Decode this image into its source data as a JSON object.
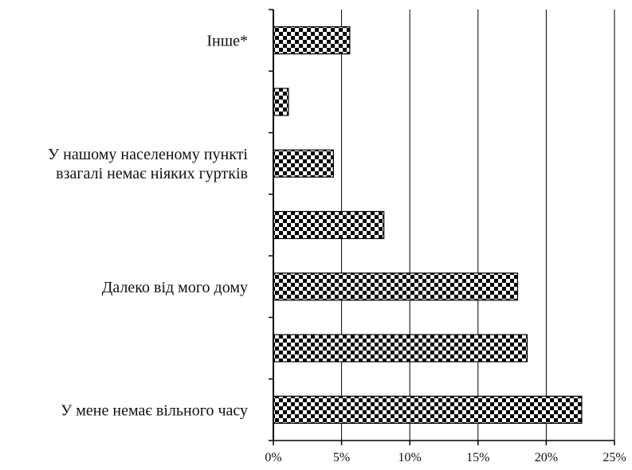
{
  "chart_data": {
    "type": "bar",
    "orientation": "horizontal",
    "categories": [
      "Інше*",
      "",
      "У нашому населеному пункті взагалі немає ніяких гуртків",
      "",
      "Далеко від мого дому",
      "",
      "У мене немає вільного часу"
    ],
    "category_label_lines": [
      [
        "Інше*"
      ],
      [],
      [
        "У нашому населеному пункті",
        "взагалі немає ніяких гуртків"
      ],
      [],
      [
        "Далеко від мого дому"
      ],
      [],
      [
        "У мене немає вільного часу"
      ]
    ],
    "values": [
      5.6,
      1.1,
      4.4,
      8.1,
      17.9,
      18.6,
      22.6
    ],
    "unit": "%",
    "xlim": [
      0,
      25
    ],
    "xticks": [
      "0%",
      "5%",
      "10%",
      "15%",
      "20%",
      "25%"
    ],
    "xtick_values": [
      0,
      5,
      10,
      15,
      20,
      25
    ],
    "grid": "vertical",
    "bar_pattern": "checkerboard",
    "bar_colors": [
      "#000000",
      "#ffffff"
    ],
    "title": "",
    "xlabel": "",
    "ylabel": "",
    "legend": "none"
  }
}
